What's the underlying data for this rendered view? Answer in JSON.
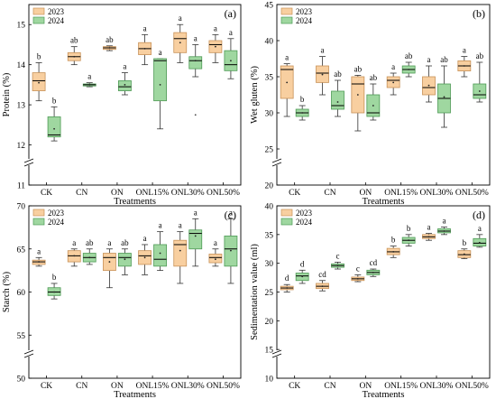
{
  "colors": {
    "y2023_fill": "#F8CFA0",
    "y2023_stroke": "#C89258",
    "y2024_fill": "#9FD7A0",
    "y2024_stroke": "#4E9A55",
    "median": "#000000",
    "axis": "#000000"
  },
  "chart_data": [
    {
      "type": "box",
      "panel": "(a)",
      "xlabel": "Treatments",
      "ylabel": "Protein (%)",
      "ylim": [
        11,
        15.5
      ],
      "axis_break": true,
      "yticks": [
        11,
        12,
        13,
        14,
        15
      ],
      "categories": [
        "CK",
        "CN",
        "ON",
        "ONL15%",
        "ONL30%",
        "ONL50%"
      ],
      "legend": [
        "2023",
        "2024"
      ],
      "series": [
        {
          "name": "2023",
          "boxes": [
            {
              "min": 13.1,
              "q1": 13.35,
              "median": 13.6,
              "q3": 13.8,
              "max": 14.05,
              "mean": 13.55,
              "letter": "b"
            },
            {
              "min": 14.0,
              "q1": 14.1,
              "median": 14.2,
              "q3": 14.3,
              "max": 14.45,
              "mean": 14.2,
              "letter": "ab"
            },
            {
              "min": 14.35,
              "q1": 14.38,
              "median": 14.42,
              "q3": 14.45,
              "max": 14.47,
              "mean": 14.42,
              "letter": "ab"
            },
            {
              "min": 14.0,
              "q1": 14.25,
              "median": 14.4,
              "q3": 14.55,
              "max": 14.75,
              "mean": 14.4,
              "letter": "a"
            },
            {
              "min": 14.05,
              "q1": 14.3,
              "median": 14.65,
              "q3": 14.8,
              "max": 15.0,
              "mean": 14.55,
              "letter": "a"
            },
            {
              "min": 14.05,
              "q1": 14.3,
              "median": 14.5,
              "q3": 14.6,
              "max": 14.75,
              "mean": 14.45,
              "letter": "a"
            }
          ]
        },
        {
          "name": "2024",
          "boxes": [
            {
              "min": 12.1,
              "q1": 12.2,
              "median": 12.25,
              "q3": 12.7,
              "max": 12.95,
              "mean": 12.4,
              "letter": "b"
            },
            {
              "min": 13.45,
              "q1": 13.47,
              "median": 13.5,
              "q3": 13.52,
              "max": 13.55,
              "mean": 13.5,
              "letter": "a"
            },
            {
              "min": 13.25,
              "q1": 13.35,
              "median": 13.45,
              "q3": 13.6,
              "max": 13.8,
              "mean": 13.5,
              "letter": "a"
            },
            {
              "min": 12.4,
              "q1": 13.1,
              "median": 14.1,
              "q3": 14.15,
              "max": 14.15,
              "mean": 13.5,
              "letter": "a"
            },
            {
              "min": 13.7,
              "q1": 13.9,
              "median": 14.1,
              "q3": 14.2,
              "max": 14.5,
              "mean": 14.1,
              "letter": "a",
              "outliers": [
                12.75
              ]
            },
            {
              "min": 13.65,
              "q1": 13.85,
              "median": 14.0,
              "q3": 14.35,
              "max": 14.65,
              "mean": 14.1,
              "letter": "a"
            }
          ]
        }
      ]
    },
    {
      "type": "box",
      "panel": "(b)",
      "xlabel": "Treatments",
      "ylabel": "Wet gluten (%)",
      "ylim": [
        20,
        45
      ],
      "axis_break": true,
      "yticks": [
        20,
        25,
        30,
        35,
        40,
        45
      ],
      "categories": [
        "CK",
        "CN",
        "ON",
        "ONL15%",
        "ONL30%",
        "ONL50%"
      ],
      "legend": [
        "2023",
        "2024"
      ],
      "series": [
        {
          "name": "2023",
          "boxes": [
            {
              "min": 29.5,
              "q1": 32.0,
              "median": 36.0,
              "q3": 36.5,
              "max": 36.8,
              "mean": 34.2,
              "letter": "a"
            },
            {
              "min": 32.5,
              "q1": 34.2,
              "median": 35.5,
              "q3": 36.5,
              "max": 37.8,
              "mean": 35.3,
              "letter": "a"
            },
            {
              "min": 27.5,
              "q1": 30.0,
              "median": 34.0,
              "q3": 35.0,
              "max": 35.2,
              "mean": 32.5,
              "letter": "ab"
            },
            {
              "min": 32.5,
              "q1": 33.5,
              "median": 34.5,
              "q3": 35.0,
              "max": 35.5,
              "mean": 34.2,
              "letter": "a"
            },
            {
              "min": 31.5,
              "q1": 32.5,
              "median": 33.5,
              "q3": 35.0,
              "max": 36.5,
              "mean": 33.8,
              "letter": "a"
            },
            {
              "min": 35.0,
              "q1": 35.8,
              "median": 36.5,
              "q3": 37.2,
              "max": 37.8,
              "mean": 36.5,
              "letter": "a"
            }
          ]
        },
        {
          "name": "2024",
          "boxes": [
            {
              "min": 29.0,
              "q1": 29.5,
              "median": 30.0,
              "q3": 30.5,
              "max": 31.0,
              "mean": 30.0,
              "letter": "b"
            },
            {
              "min": 29.5,
              "q1": 30.5,
              "median": 31.0,
              "q3": 33.0,
              "max": 34.5,
              "mean": 31.5,
              "letter": "ab"
            },
            {
              "min": 29.0,
              "q1": 29.5,
              "median": 30.0,
              "q3": 32.5,
              "max": 34.0,
              "mean": 31.0,
              "letter": "ab"
            },
            {
              "min": 35.0,
              "q1": 35.5,
              "median": 36.0,
              "q3": 36.5,
              "max": 37.0,
              "mean": 36.0,
              "letter": "ab"
            },
            {
              "min": 28.0,
              "q1": 30.0,
              "median": 32.0,
              "q3": 34.0,
              "max": 36.5,
              "mean": 32.2,
              "letter": "ab"
            },
            {
              "min": 31.5,
              "q1": 32.0,
              "median": 32.5,
              "q3": 34.0,
              "max": 37.0,
              "mean": 33.0,
              "letter": "ab"
            }
          ]
        }
      ]
    },
    {
      "type": "box",
      "panel": "(c)",
      "xlabel": "Treatments",
      "ylabel": "Starch (%)",
      "ylim": [
        50,
        70
      ],
      "axis_break": true,
      "yticks": [
        50,
        55,
        60,
        65,
        70
      ],
      "categories": [
        "CK",
        "CN",
        "ON",
        "ONL15%",
        "ONL30%",
        "ONL50%"
      ],
      "legend": [
        "2023",
        "2024"
      ],
      "series": [
        {
          "name": "2023",
          "boxes": [
            {
              "min": 63.0,
              "q1": 63.2,
              "median": 63.5,
              "q3": 63.7,
              "max": 64.0,
              "mean": 63.5,
              "letter": "a"
            },
            {
              "min": 63.0,
              "q1": 63.5,
              "median": 64.2,
              "q3": 64.8,
              "max": 65.0,
              "mean": 64.2,
              "letter": "a"
            },
            {
              "min": 60.5,
              "q1": 62.5,
              "median": 64.0,
              "q3": 64.5,
              "max": 65.0,
              "mean": 63.5,
              "letter": "a"
            },
            {
              "min": 62.0,
              "q1": 63.2,
              "median": 64.2,
              "q3": 64.8,
              "max": 65.5,
              "mean": 64.0,
              "letter": "a"
            },
            {
              "min": 61.0,
              "q1": 63.0,
              "median": 65.5,
              "q3": 66.0,
              "max": 67.0,
              "mean": 64.8,
              "letter": "a"
            },
            {
              "min": 63.0,
              "q1": 63.4,
              "median": 64.0,
              "q3": 64.4,
              "max": 65.0,
              "mean": 63.8,
              "letter": "a"
            }
          ]
        },
        {
          "name": "2024",
          "boxes": [
            {
              "min": 59.2,
              "q1": 59.6,
              "median": 60.0,
              "q3": 60.5,
              "max": 61.0,
              "mean": 60.0,
              "letter": "b"
            },
            {
              "min": 63.2,
              "q1": 63.5,
              "median": 64.0,
              "q3": 64.5,
              "max": 65.0,
              "mean": 64.0,
              "letter": "ab"
            },
            {
              "min": 62.0,
              "q1": 63.0,
              "median": 64.0,
              "q3": 64.5,
              "max": 65.0,
              "mean": 63.8,
              "letter": "ab"
            },
            {
              "min": 62.5,
              "q1": 63.0,
              "median": 63.8,
              "q3": 65.5,
              "max": 67.0,
              "mean": 64.5,
              "letter": "a"
            },
            {
              "min": 63.0,
              "q1": 65.0,
              "median": 66.8,
              "q3": 67.2,
              "max": 68.5,
              "mean": 66.5,
              "letter": "a"
            },
            {
              "min": 61.0,
              "q1": 63.0,
              "median": 65.0,
              "q3": 66.5,
              "max": 68.5,
              "mean": 64.8,
              "letter": "a"
            }
          ]
        }
      ]
    },
    {
      "type": "box",
      "panel": "(d)",
      "xlabel": "Treatments",
      "ylabel": "Sedimentation value (ml)",
      "ylim": [
        10,
        40
      ],
      "axis_break": true,
      "yticks": [
        10,
        15,
        20,
        25,
        30,
        35,
        40
      ],
      "categories": [
        "CK",
        "CN",
        "ON",
        "ONL15%",
        "ONL30%",
        "ONL50%"
      ],
      "legend": [
        "2023",
        "2024"
      ],
      "series": [
        {
          "name": "2023",
          "boxes": [
            {
              "min": 25.0,
              "q1": 25.4,
              "median": 25.7,
              "q3": 26.0,
              "max": 26.3,
              "mean": 25.7,
              "letter": "d"
            },
            {
              "min": 25.2,
              "q1": 25.6,
              "median": 26.0,
              "q3": 26.5,
              "max": 27.0,
              "mean": 26.0,
              "letter": "cd"
            },
            {
              "min": 26.8,
              "q1": 27.0,
              "median": 27.3,
              "q3": 27.6,
              "max": 28.0,
              "mean": 27.3,
              "letter": "c"
            },
            {
              "min": 31.0,
              "q1": 31.5,
              "median": 32.0,
              "q3": 32.6,
              "max": 33.0,
              "mean": 32.0,
              "letter": "b"
            },
            {
              "min": 34.0,
              "q1": 34.3,
              "median": 34.6,
              "q3": 35.0,
              "max": 35.2,
              "mean": 34.6,
              "letter": "a"
            },
            {
              "min": 30.8,
              "q1": 31.0,
              "median": 31.5,
              "q3": 32.2,
              "max": 32.5,
              "mean": 31.6,
              "letter": "b"
            }
          ]
        },
        {
          "name": "2024",
          "boxes": [
            {
              "min": 26.5,
              "q1": 27.0,
              "median": 27.8,
              "q3": 28.3,
              "max": 28.8,
              "mean": 27.7,
              "letter": "d"
            },
            {
              "min": 29.0,
              "q1": 29.3,
              "median": 29.6,
              "q3": 29.9,
              "max": 30.2,
              "mean": 29.6,
              "letter": "c"
            },
            {
              "min": 27.7,
              "q1": 28.0,
              "median": 28.4,
              "q3": 28.8,
              "max": 29.0,
              "mean": 28.4,
              "letter": "cd"
            },
            {
              "min": 33.0,
              "q1": 33.5,
              "median": 34.0,
              "q3": 34.5,
              "max": 35.0,
              "mean": 34.0,
              "letter": "b"
            },
            {
              "min": 35.0,
              "q1": 35.3,
              "median": 35.6,
              "q3": 36.0,
              "max": 36.3,
              "mean": 35.6,
              "letter": "a"
            },
            {
              "min": 32.8,
              "q1": 33.0,
              "median": 33.5,
              "q3": 34.3,
              "max": 35.0,
              "mean": 33.6,
              "letter": "a"
            }
          ]
        }
      ]
    }
  ]
}
